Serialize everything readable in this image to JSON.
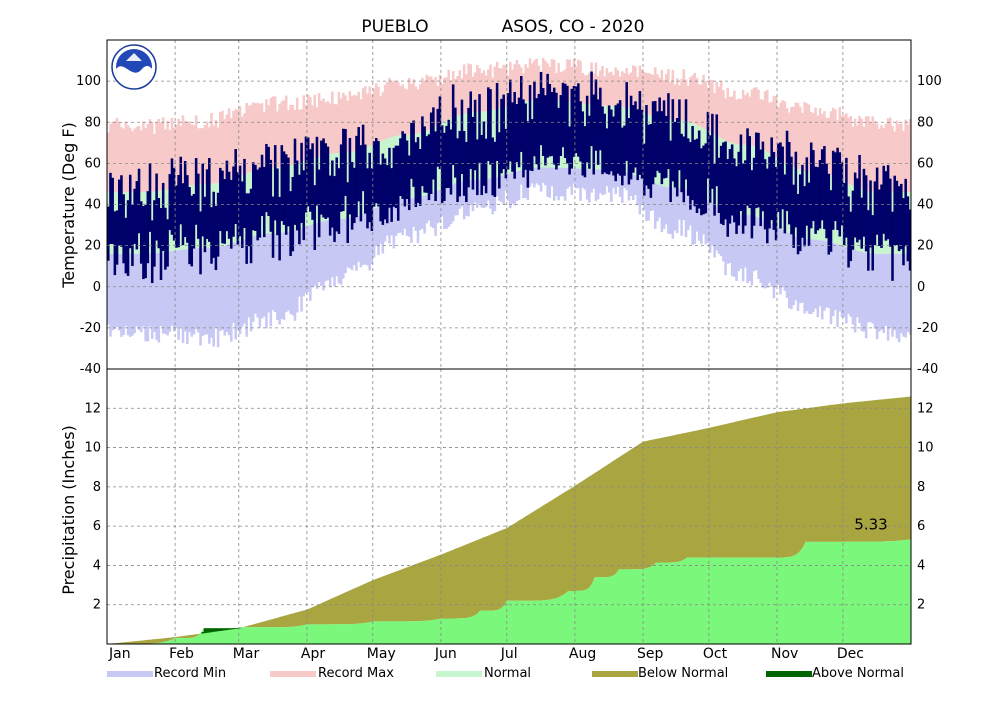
{
  "chart_data": {
    "type": "area",
    "title_station": "PUEBLO",
    "title_rest": "ASOS, CO - 2020",
    "months": [
      "Jan",
      "Feb",
      "Mar",
      "Apr",
      "May",
      "Jun",
      "Jul",
      "Aug",
      "Sep",
      "Oct",
      "Nov",
      "Dec"
    ],
    "temperature_panel": {
      "ylabel": "Temperature (Deg F)",
      "ylim": [
        -40,
        120
      ],
      "yticks": [
        -40,
        -20,
        0,
        20,
        40,
        60,
        80,
        100
      ],
      "grid": true,
      "normal_high_by_month": [
        46,
        50,
        58,
        65,
        74,
        85,
        91,
        88,
        81,
        69,
        56,
        46
      ],
      "normal_low_by_month": [
        16,
        19,
        26,
        33,
        43,
        52,
        58,
        57,
        48,
        35,
        23,
        16
      ],
      "record_max_by_month": [
        78,
        81,
        89,
        92,
        99,
        105,
        108,
        106,
        102,
        94,
        86,
        80
      ],
      "record_min_by_month": [
        -23,
        -25,
        -16,
        4,
        25,
        38,
        47,
        45,
        28,
        6,
        -12,
        -22
      ]
    },
    "precip_panel": {
      "ylabel": "Precipitation (Inches)",
      "ylim": [
        0,
        14
      ],
      "yticks": [
        2,
        4,
        6,
        8,
        10,
        12
      ],
      "grid": true,
      "normal_cumulative_x_day": [
        0,
        31,
        60,
        91,
        121,
        152,
        182,
        213,
        244,
        274,
        305,
        335,
        366
      ],
      "normal_cumulative": [
        0,
        0.35,
        0.8,
        1.75,
        3.25,
        4.55,
        5.9,
        8.05,
        10.3,
        11.0,
        11.8,
        12.25,
        12.6
      ],
      "observed_cumulative_x_day": [
        0,
        31,
        44,
        62,
        91,
        121,
        152,
        170,
        182,
        210,
        222,
        233,
        250,
        264,
        300,
        318,
        366
      ],
      "observed_cumulative": [
        0,
        0.3,
        0.8,
        0.85,
        1.0,
        1.15,
        1.3,
        1.7,
        2.2,
        2.7,
        3.4,
        3.8,
        4.15,
        4.4,
        4.4,
        5.2,
        5.33
      ],
      "final_total_label": "5.33"
    },
    "legend": {
      "record_min": "Record Min",
      "record_max": "Record Max",
      "normal": "Normal",
      "below_normal": "Below Normal",
      "above_normal": "Above Normal"
    },
    "colors": {
      "record_min": "#c8c8f5",
      "record_max": "#f7c9c9",
      "normal": "#c7f5cd",
      "observed": "#00006a",
      "below_normal": "#a9a541",
      "above_normal": "#006400",
      "observed_precip": "#7bf77b"
    },
    "logo": "noaa-logo"
  }
}
